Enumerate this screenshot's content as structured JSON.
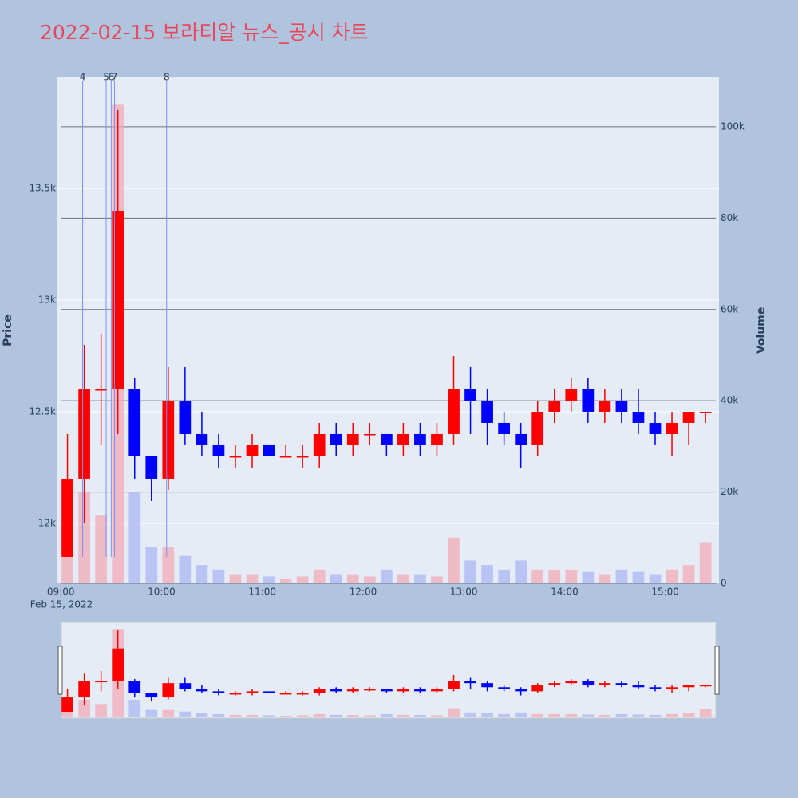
{
  "chart_data": {
    "type": "candlestick",
    "title": "2022-02-15 보라티알 뉴스_공시 차트",
    "y_title": "Price",
    "y2_title": "Volume",
    "date_label": "Feb 15, 2022",
    "increasing_color": "#ff0000",
    "decreasing_color": "#0000ff",
    "volume_up_color": "#f4a6b4",
    "volume_down_color": "#a6b4f4",
    "xlim": [
      "08:58",
      "15:32"
    ],
    "xticks": [
      "09:00",
      "10:00",
      "11:00",
      "12:00",
      "13:00",
      "14:00",
      "15:00"
    ],
    "ylim": [
      11732,
      14000
    ],
    "yticks": [
      {
        "value": 12000,
        "label": "12k"
      },
      {
        "value": 12500,
        "label": "12.5k"
      },
      {
        "value": 13000,
        "label": "13k"
      },
      {
        "value": 13500,
        "label": "13.5k"
      }
    ],
    "y2lim": [
      0,
      111000
    ],
    "y2ticks": [
      0,
      {
        "value": 20000,
        "label": "20k"
      },
      {
        "value": 40000,
        "label": "40k"
      },
      {
        "value": 60000,
        "label": "60k"
      },
      {
        "value": 80000,
        "label": "80k"
      },
      {
        "value": 100000,
        "label": "100k"
      }
    ],
    "vlines": [
      {
        "x": "09:13",
        "label": "4"
      },
      {
        "x": "09:27",
        "label": "5"
      },
      {
        "x": "09:30",
        "label": "6"
      },
      {
        "x": "09:32",
        "label": "7"
      },
      {
        "x": "10:03",
        "label": "8"
      }
    ],
    "x": [
      "09:00",
      "09:10",
      "09:20",
      "09:30",
      "09:40",
      "09:50",
      "10:00",
      "10:10",
      "10:20",
      "10:30",
      "10:40",
      "10:50",
      "11:00",
      "11:10",
      "11:20",
      "11:30",
      "11:40",
      "11:50",
      "12:00",
      "12:10",
      "12:20",
      "12:30",
      "12:40",
      "12:50",
      "13:00",
      "13:10",
      "13:20",
      "13:30",
      "13:40",
      "13:50",
      "14:00",
      "14:10",
      "14:20",
      "14:30",
      "14:40",
      "14:50",
      "15:00",
      "15:10",
      "15:20"
    ],
    "open": [
      11850,
      12200,
      12600,
      12600,
      12600,
      12300,
      12200,
      12550,
      12400,
      12350,
      12300,
      12300,
      12350,
      12300,
      12300,
      12300,
      12400,
      12350,
      12400,
      12400,
      12350,
      12400,
      12350,
      12400,
      12600,
      12550,
      12450,
      12400,
      12350,
      12500,
      12550,
      12600,
      12500,
      12550,
      12500,
      12450,
      12400,
      12450,
      12500
    ],
    "high": [
      12400,
      12800,
      12850,
      13850,
      12650,
      12300,
      12700,
      12700,
      12500,
      12400,
      12350,
      12400,
      12350,
      12350,
      12350,
      12450,
      12450,
      12450,
      12450,
      12400,
      12450,
      12450,
      12450,
      12750,
      12700,
      12600,
      12500,
      12450,
      12550,
      12600,
      12650,
      12650,
      12600,
      12600,
      12600,
      12500,
      12500,
      12500,
      12500
    ],
    "low": [
      11850,
      12000,
      12350,
      12400,
      12200,
      12100,
      12150,
      12350,
      12300,
      12250,
      12250,
      12250,
      12300,
      12300,
      12250,
      12250,
      12300,
      12300,
      12350,
      12300,
      12300,
      12300,
      12300,
      12350,
      12400,
      12350,
      12350,
      12250,
      12300,
      12450,
      12500,
      12450,
      12450,
      12450,
      12400,
      12350,
      12300,
      12350,
      12450
    ],
    "close": [
      12200,
      12600,
      12600,
      13400,
      12300,
      12200,
      12550,
      12400,
      12350,
      12300,
      12300,
      12350,
      12300,
      12300,
      12300,
      12400,
      12350,
      12400,
      12400,
      12350,
      12400,
      12350,
      12400,
      12600,
      12550,
      12450,
      12400,
      12350,
      12500,
      12550,
      12600,
      12500,
      12550,
      12500,
      12450,
      12400,
      12450,
      12500,
      12500
    ],
    "volume": [
      15000,
      20000,
      15000,
      105000,
      20000,
      8000,
      8000,
      6000,
      4000,
      3000,
      2000,
      2000,
      1500,
      1000,
      1500,
      3000,
      2000,
      2000,
      1500,
      3000,
      2000,
      2000,
      1500,
      10000,
      5000,
      4000,
      3000,
      5000,
      3000,
      3000,
      3000,
      2500,
      2000,
      3000,
      2500,
      2000,
      3000,
      4000,
      9000
    ]
  }
}
